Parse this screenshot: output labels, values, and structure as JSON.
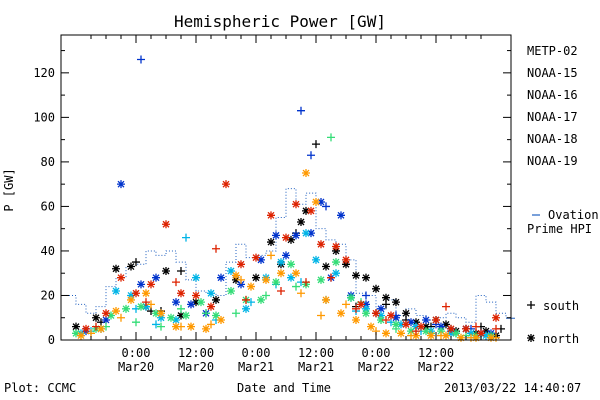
{
  "chart_data": {
    "type": "scatter",
    "title": "Hemispheric Power [GW]",
    "ylabel": "P [GW]",
    "xlabel": "Date and Time",
    "ylim": [
      0,
      137
    ],
    "y_ticks": [
      0,
      20,
      40,
      60,
      80,
      100,
      120
    ],
    "xlim_hours": [
      -15,
      75
    ],
    "x_ticks": [
      {
        "time": "0:00",
        "date": "Mar20"
      },
      {
        "time": "12:00",
        "date": "Mar20"
      },
      {
        "time": "0:00",
        "date": "Mar21"
      },
      {
        "time": "12:00",
        "date": "Mar21"
      },
      {
        "time": "0:00",
        "date": "Mar22"
      },
      {
        "time": "12:00",
        "date": "Mar22"
      }
    ],
    "legend_placement": "right",
    "series": [
      {
        "name": "METP-02",
        "color": "#000000",
        "values": [
          [
            -12,
            6
          ],
          [
            -8,
            10
          ],
          [
            -4,
            32
          ],
          [
            -1,
            33
          ],
          [
            2,
            15
          ],
          [
            6,
            31
          ],
          [
            9,
            11
          ],
          [
            12,
            17
          ],
          [
            16,
            18
          ],
          [
            20,
            27
          ],
          [
            24,
            28
          ],
          [
            27,
            44
          ],
          [
            29,
            34
          ],
          [
            31,
            45
          ],
          [
            33,
            53
          ],
          [
            34,
            58
          ],
          [
            38,
            33
          ],
          [
            40,
            40
          ],
          [
            42,
            34
          ],
          [
            44,
            29
          ],
          [
            46,
            28
          ],
          [
            48,
            23
          ],
          [
            50,
            19
          ],
          [
            52,
            17
          ],
          [
            54,
            12
          ],
          [
            56,
            8
          ],
          [
            58,
            6
          ],
          [
            60,
            9
          ],
          [
            62,
            7
          ],
          [
            64,
            4
          ],
          [
            66,
            5
          ],
          [
            68,
            3
          ],
          [
            70,
            4
          ],
          [
            72,
            2
          ]
        ],
        "plus_points": [
          [
            -7,
            8
          ],
          [
            0,
            35
          ],
          [
            3,
            13
          ],
          [
            5,
            13
          ],
          [
            9,
            31
          ],
          [
            32,
            48
          ],
          [
            36,
            88
          ],
          [
            44,
            15
          ],
          [
            48,
            12
          ],
          [
            50,
            16
          ],
          [
            54,
            9
          ],
          [
            59,
            6
          ],
          [
            63,
            5
          ],
          [
            69,
            6
          ],
          [
            73,
            5
          ]
        ]
      },
      {
        "name": "NOAA-15",
        "color": "#0033cc",
        "values": [
          [
            -10,
            4
          ],
          [
            -6,
            9
          ],
          [
            -3,
            70
          ],
          [
            1,
            25
          ],
          [
            4,
            28
          ],
          [
            8,
            17
          ],
          [
            11,
            16
          ],
          [
            14,
            12
          ],
          [
            17,
            28
          ],
          [
            21,
            25
          ],
          [
            25,
            36
          ],
          [
            28,
            47
          ],
          [
            30,
            38
          ],
          [
            32,
            47
          ],
          [
            35,
            48
          ],
          [
            37,
            62
          ],
          [
            39,
            28
          ],
          [
            41,
            56
          ],
          [
            43,
            20
          ],
          [
            46,
            16
          ],
          [
            49,
            14
          ],
          [
            52,
            10
          ],
          [
            55,
            8
          ],
          [
            58,
            9
          ],
          [
            61,
            6
          ],
          [
            63,
            4
          ],
          [
            66,
            5
          ],
          [
            69,
            3
          ],
          [
            71,
            3
          ]
        ],
        "plus_points": [
          [
            1,
            126
          ],
          [
            33,
            103
          ],
          [
            35,
            83
          ],
          [
            38,
            60
          ],
          [
            46,
            20
          ],
          [
            52,
            11
          ],
          [
            60,
            7
          ],
          [
            67,
            5
          ]
        ]
      },
      {
        "name": "NOAA-16",
        "color": "#00b4e6",
        "values": [
          [
            -11,
            3
          ],
          [
            -7,
            5
          ],
          [
            -4,
            22
          ],
          [
            -1,
            20
          ],
          [
            2,
            15
          ],
          [
            5,
            10
          ],
          [
            8,
            9
          ],
          [
            12,
            28
          ],
          [
            15,
            21
          ],
          [
            19,
            31
          ],
          [
            22,
            14
          ],
          [
            26,
            28
          ],
          [
            29,
            35
          ],
          [
            31,
            28
          ],
          [
            34,
            48
          ],
          [
            36,
            36
          ],
          [
            40,
            30
          ],
          [
            43,
            19
          ],
          [
            46,
            14
          ],
          [
            49,
            11
          ],
          [
            53,
            7
          ],
          [
            56,
            6
          ],
          [
            59,
            4
          ],
          [
            63,
            3
          ],
          [
            67,
            3
          ],
          [
            70,
            2
          ]
        ],
        "plus_points": [
          [
            -9,
            4
          ],
          [
            0,
            14
          ],
          [
            4,
            7
          ],
          [
            10,
            46
          ],
          [
            16,
            9
          ],
          [
            23,
            17
          ],
          [
            28,
            25
          ],
          [
            33,
            26
          ],
          [
            38,
            18
          ],
          [
            44,
            13
          ],
          [
            51,
            8
          ],
          [
            57,
            4
          ],
          [
            64,
            3
          ],
          [
            69,
            2
          ]
        ]
      },
      {
        "name": "NOAA-17",
        "color": "#33dd77",
        "values": [
          [
            -12,
            3
          ],
          [
            -8,
            5
          ],
          [
            -5,
            11
          ],
          [
            -2,
            14
          ],
          [
            1,
            15
          ],
          [
            4,
            12
          ],
          [
            7,
            10
          ],
          [
            10,
            11
          ],
          [
            13,
            17
          ],
          [
            16,
            11
          ],
          [
            19,
            22
          ],
          [
            22,
            18
          ],
          [
            25,
            18
          ],
          [
            28,
            26
          ],
          [
            31,
            34
          ],
          [
            34,
            25
          ],
          [
            37,
            27
          ],
          [
            40,
            35
          ],
          [
            43,
            19
          ],
          [
            46,
            12
          ],
          [
            49,
            9
          ],
          [
            52,
            7
          ],
          [
            55,
            4
          ],
          [
            58,
            4
          ],
          [
            61,
            4
          ],
          [
            64,
            3
          ],
          [
            68,
            2
          ],
          [
            71,
            2
          ]
        ],
        "plus_points": [
          [
            -6,
            6
          ],
          [
            0,
            8
          ],
          [
            5,
            6
          ],
          [
            9,
            14
          ],
          [
            14,
            12
          ],
          [
            20,
            12
          ],
          [
            26,
            20
          ],
          [
            32,
            24
          ],
          [
            39,
            91
          ],
          [
            45,
            17
          ],
          [
            52,
            5
          ],
          [
            59,
            3
          ],
          [
            66,
            2
          ]
        ]
      },
      {
        "name": "NOAA-18",
        "color": "#ff9900",
        "values": [
          [
            -11,
            2
          ],
          [
            -7,
            5
          ],
          [
            -4,
            13
          ],
          [
            -1,
            18
          ],
          [
            2,
            21
          ],
          [
            5,
            12
          ],
          [
            8,
            6
          ],
          [
            11,
            6
          ],
          [
            14,
            5
          ],
          [
            17,
            9
          ],
          [
            20,
            29
          ],
          [
            23,
            24
          ],
          [
            26,
            27
          ],
          [
            29,
            30
          ],
          [
            32,
            30
          ],
          [
            34,
            75
          ],
          [
            36,
            62
          ],
          [
            38,
            18
          ],
          [
            41,
            12
          ],
          [
            44,
            9
          ],
          [
            47,
            6
          ],
          [
            50,
            3
          ],
          [
            53,
            3
          ],
          [
            56,
            2
          ],
          [
            59,
            2
          ],
          [
            62,
            2
          ],
          [
            65,
            1
          ],
          [
            68,
            1
          ],
          [
            71,
            1
          ]
        ],
        "plus_points": [
          [
            -9,
            3
          ],
          [
            -3,
            10
          ],
          [
            3,
            16
          ],
          [
            9,
            6
          ],
          [
            15,
            7
          ],
          [
            21,
            27
          ],
          [
            27,
            38
          ],
          [
            33,
            21
          ],
          [
            37,
            11
          ],
          [
            42,
            16
          ],
          [
            48,
            4
          ],
          [
            55,
            2
          ],
          [
            61,
            2
          ],
          [
            67,
            1
          ],
          [
            72,
            1
          ]
        ]
      },
      {
        "name": "NOAA-19",
        "color": "#dd2200",
        "values": [
          [
            -10,
            5
          ],
          [
            -6,
            12
          ],
          [
            -3,
            28
          ],
          [
            0,
            21
          ],
          [
            3,
            25
          ],
          [
            6,
            52
          ],
          [
            9,
            21
          ],
          [
            12,
            20
          ],
          [
            15,
            15
          ],
          [
            18,
            70
          ],
          [
            21,
            34
          ],
          [
            24,
            37
          ],
          [
            27,
            56
          ],
          [
            30,
            46
          ],
          [
            32,
            61
          ],
          [
            35,
            58
          ],
          [
            37,
            43
          ],
          [
            40,
            42
          ],
          [
            42,
            36
          ],
          [
            45,
            16
          ],
          [
            48,
            12
          ],
          [
            51,
            11
          ],
          [
            54,
            7
          ],
          [
            57,
            6
          ],
          [
            60,
            9
          ],
          [
            63,
            5
          ],
          [
            66,
            5
          ],
          [
            69,
            3
          ],
          [
            72,
            10
          ]
        ],
        "plus_points": [
          [
            -8,
            6
          ],
          [
            2,
            17
          ],
          [
            8,
            26
          ],
          [
            16,
            41
          ],
          [
            22,
            18
          ],
          [
            29,
            22
          ],
          [
            34,
            26
          ],
          [
            39,
            28
          ],
          [
            44,
            14
          ],
          [
            50,
            9
          ],
          [
            56,
            4
          ],
          [
            62,
            15
          ],
          [
            68,
            6
          ],
          [
            72,
            5
          ]
        ]
      }
    ],
    "hpi_model": {
      "name": "Ovation Prime HPI",
      "color": "#2060c0",
      "values": [
        [
          -14,
          20
        ],
        [
          -12,
          16
        ],
        [
          -10,
          12
        ],
        [
          -8,
          15
        ],
        [
          -6,
          24
        ],
        [
          -4,
          28
        ],
        [
          -2,
          33
        ],
        [
          0,
          34
        ],
        [
          2,
          40
        ],
        [
          4,
          38
        ],
        [
          6,
          40
        ],
        [
          8,
          35
        ],
        [
          10,
          27
        ],
        [
          12,
          22
        ],
        [
          14,
          21
        ],
        [
          16,
          20
        ],
        [
          18,
          35
        ],
        [
          20,
          43
        ],
        [
          22,
          37
        ],
        [
          24,
          38
        ],
        [
          26,
          40
        ],
        [
          28,
          55
        ],
        [
          30,
          68
        ],
        [
          32,
          61
        ],
        [
          34,
          66
        ],
        [
          36,
          50
        ],
        [
          38,
          45
        ],
        [
          40,
          43
        ],
        [
          42,
          36
        ],
        [
          44,
          21
        ],
        [
          46,
          20
        ],
        [
          48,
          14
        ],
        [
          50,
          18
        ],
        [
          52,
          11
        ],
        [
          54,
          14
        ],
        [
          56,
          11
        ],
        [
          58,
          9
        ],
        [
          60,
          10
        ],
        [
          62,
          12
        ],
        [
          64,
          10
        ],
        [
          66,
          8
        ],
        [
          68,
          20
        ],
        [
          70,
          17
        ],
        [
          72,
          12
        ],
        [
          74,
          10
        ]
      ]
    },
    "legend_labels": {
      "hpi_line1": "Ovation",
      "hpi_line2": "Prime HPI",
      "south": "south",
      "north": "north"
    },
    "symbols": {
      "south": "+",
      "north": "*"
    }
  },
  "footer": {
    "left": "Plot: CCMC",
    "center": "Date and Time",
    "right": "2013/03/22 14:40:07"
  }
}
